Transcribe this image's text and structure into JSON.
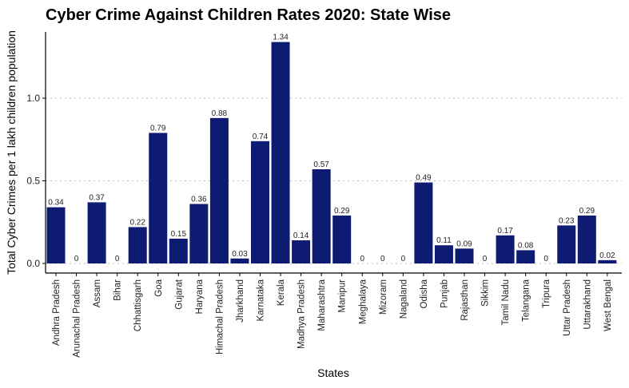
{
  "chart_data": {
    "type": "bar",
    "title": "Cyber Crime Against Children Rates 2020: State Wise",
    "xlabel": "States",
    "ylabel": "Total Cyber Crimes per 1 lakh children population",
    "ylim": [
      0,
      1.4
    ],
    "yticks": [
      0.0,
      0.5,
      1.0
    ],
    "ytick_labels": [
      "0.0",
      "0.5",
      "1.0"
    ],
    "grid": "horizontal dotted",
    "bar_color": "#0e1b73",
    "categories": [
      "Andhra Pradesh",
      "Arunachal Pradesh",
      "Assam",
      "Bihar",
      "Chhattisgarh",
      "Goa",
      "Gujarat",
      "Haryana",
      "Himachal Pradesh",
      "Jharkhand",
      "Karnataka",
      "Kerala",
      "Madhya Pradesh",
      "Maharashtra",
      "Manipur",
      "Meghalaya",
      "Mizoram",
      "Nagaland",
      "Odisha",
      "Punjab",
      "Rajasthan",
      "Sikkim",
      "Tamil Nadu",
      "Telangana",
      "Tripura",
      "Uttar Pradesh",
      "Uttarakhand",
      "West Bengal"
    ],
    "values": [
      0.34,
      0,
      0.37,
      0,
      0.22,
      0.79,
      0.15,
      0.36,
      0.88,
      0.03,
      0.74,
      1.34,
      0.14,
      0.57,
      0.29,
      0,
      0,
      0,
      0.49,
      0.11,
      0.09,
      0,
      0.17,
      0.08,
      0,
      0.23,
      0.29,
      0.02
    ],
    "value_labels": [
      "0.34",
      "0",
      "0.37",
      "0",
      "0.22",
      "0.79",
      "0.15",
      "0.36",
      "0.88",
      "0.03",
      "0.74",
      "1.34",
      "0.14",
      "0.57",
      "0.29",
      "0",
      "0",
      "0",
      "0.49",
      "0.11",
      "0.09",
      "0",
      "0.17",
      "0.08",
      "0",
      "0.23",
      "0.29",
      "0.02"
    ]
  }
}
